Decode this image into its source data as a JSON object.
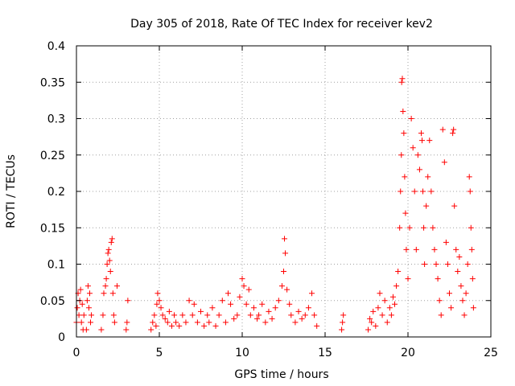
{
  "chart_data": {
    "type": "scatter",
    "title": "Day 305 of 2018, Rate Of TEC Index for receiver kev2",
    "xlabel": "GPS time / hours",
    "ylabel": "ROTI / TECUs",
    "xlim": [
      0,
      25
    ],
    "ylim": [
      0,
      0.4
    ],
    "xticks": [
      "0",
      "5",
      "10",
      "15",
      "20",
      "25"
    ],
    "yticks": [
      "0",
      "0.05",
      "0.1",
      "0.15",
      "0.2",
      "0.25",
      "0.3",
      "0.35",
      "0.4"
    ],
    "grid": true,
    "marker": "+",
    "color": "#ff0000",
    "series": [
      {
        "name": "ROTI",
        "points": [
          [
            0.0,
            0.02
          ],
          [
            0.05,
            0.04
          ],
          [
            0.1,
            0.06
          ],
          [
            0.15,
            0.03
          ],
          [
            0.2,
            0.05
          ],
          [
            0.25,
            0.065
          ],
          [
            0.3,
            0.02
          ],
          [
            0.35,
            0.045
          ],
          [
            0.4,
            0.01
          ],
          [
            0.45,
            0.03
          ],
          [
            0.6,
            0.01
          ],
          [
            0.65,
            0.05
          ],
          [
            0.7,
            0.07
          ],
          [
            0.75,
            0.04
          ],
          [
            0.8,
            0.06
          ],
          [
            0.85,
            0.02
          ],
          [
            0.9,
            0.03
          ],
          [
            1.5,
            0.01
          ],
          [
            1.6,
            0.03
          ],
          [
            1.65,
            0.06
          ],
          [
            1.75,
            0.07
          ],
          [
            1.8,
            0.08
          ],
          [
            1.85,
            0.1
          ],
          [
            1.9,
            0.115
          ],
          [
            1.95,
            0.12
          ],
          [
            2.0,
            0.105
          ],
          [
            2.05,
            0.09
          ],
          [
            2.1,
            0.13
          ],
          [
            2.15,
            0.135
          ],
          [
            2.2,
            0.06
          ],
          [
            2.25,
            0.03
          ],
          [
            2.3,
            0.02
          ],
          [
            2.45,
            0.07
          ],
          [
            3.0,
            0.01
          ],
          [
            3.05,
            0.02
          ],
          [
            3.1,
            0.05
          ],
          [
            4.5,
            0.01
          ],
          [
            4.6,
            0.02
          ],
          [
            4.7,
            0.03
          ],
          [
            4.8,
            0.015
          ],
          [
            4.85,
            0.045
          ],
          [
            4.9,
            0.06
          ],
          [
            5.0,
            0.05
          ],
          [
            5.1,
            0.04
          ],
          [
            5.2,
            0.03
          ],
          [
            5.35,
            0.025
          ],
          [
            5.5,
            0.02
          ],
          [
            5.6,
            0.035
          ],
          [
            5.75,
            0.015
          ],
          [
            5.9,
            0.03
          ],
          [
            6.0,
            0.02
          ],
          [
            6.2,
            0.015
          ],
          [
            6.4,
            0.03
          ],
          [
            6.6,
            0.02
          ],
          [
            6.8,
            0.05
          ],
          [
            7.0,
            0.03
          ],
          [
            7.1,
            0.045
          ],
          [
            7.3,
            0.02
          ],
          [
            7.5,
            0.035
          ],
          [
            7.7,
            0.015
          ],
          [
            7.9,
            0.03
          ],
          [
            8.0,
            0.02
          ],
          [
            8.2,
            0.04
          ],
          [
            8.4,
            0.015
          ],
          [
            8.6,
            0.03
          ],
          [
            8.8,
            0.05
          ],
          [
            9.0,
            0.02
          ],
          [
            9.15,
            0.06
          ],
          [
            9.3,
            0.045
          ],
          [
            9.5,
            0.025
          ],
          [
            9.7,
            0.03
          ],
          [
            9.85,
            0.055
          ],
          [
            10.0,
            0.08
          ],
          [
            10.1,
            0.07
          ],
          [
            10.25,
            0.045
          ],
          [
            10.4,
            0.065
          ],
          [
            10.5,
            0.03
          ],
          [
            10.7,
            0.04
          ],
          [
            10.9,
            0.025
          ],
          [
            11.0,
            0.03
          ],
          [
            11.2,
            0.045
          ],
          [
            11.4,
            0.02
          ],
          [
            11.6,
            0.035
          ],
          [
            11.8,
            0.025
          ],
          [
            12.0,
            0.04
          ],
          [
            12.2,
            0.05
          ],
          [
            12.4,
            0.07
          ],
          [
            12.5,
            0.09
          ],
          [
            12.55,
            0.135
          ],
          [
            12.6,
            0.115
          ],
          [
            12.7,
            0.065
          ],
          [
            12.85,
            0.045
          ],
          [
            12.95,
            0.03
          ],
          [
            13.2,
            0.02
          ],
          [
            13.4,
            0.035
          ],
          [
            13.6,
            0.025
          ],
          [
            13.8,
            0.03
          ],
          [
            14.0,
            0.04
          ],
          [
            14.2,
            0.06
          ],
          [
            14.35,
            0.03
          ],
          [
            14.5,
            0.015
          ],
          [
            16.0,
            0.01
          ],
          [
            16.05,
            0.02
          ],
          [
            16.1,
            0.03
          ],
          [
            17.6,
            0.01
          ],
          [
            17.7,
            0.025
          ],
          [
            17.8,
            0.02
          ],
          [
            17.9,
            0.035
          ],
          [
            18.05,
            0.015
          ],
          [
            18.2,
            0.04
          ],
          [
            18.3,
            0.06
          ],
          [
            18.45,
            0.03
          ],
          [
            18.6,
            0.05
          ],
          [
            18.75,
            0.02
          ],
          [
            18.9,
            0.04
          ],
          [
            19.0,
            0.03
          ],
          [
            19.1,
            0.055
          ],
          [
            19.2,
            0.045
          ],
          [
            19.3,
            0.07
          ],
          [
            19.4,
            0.09
          ],
          [
            19.5,
            0.15
          ],
          [
            19.55,
            0.2
          ],
          [
            19.6,
            0.25
          ],
          [
            19.62,
            0.35
          ],
          [
            19.66,
            0.355
          ],
          [
            19.7,
            0.31
          ],
          [
            19.75,
            0.28
          ],
          [
            19.8,
            0.22
          ],
          [
            19.85,
            0.17
          ],
          [
            19.9,
            0.12
          ],
          [
            20.0,
            0.08
          ],
          [
            20.1,
            0.15
          ],
          [
            20.2,
            0.3
          ],
          [
            20.3,
            0.26
          ],
          [
            20.4,
            0.2
          ],
          [
            20.5,
            0.12
          ],
          [
            20.6,
            0.25
          ],
          [
            20.7,
            0.23
          ],
          [
            20.8,
            0.28
          ],
          [
            20.85,
            0.27
          ],
          [
            20.9,
            0.2
          ],
          [
            20.95,
            0.15
          ],
          [
            21.0,
            0.1
          ],
          [
            21.1,
            0.18
          ],
          [
            21.2,
            0.22
          ],
          [
            21.3,
            0.27
          ],
          [
            21.4,
            0.2
          ],
          [
            21.5,
            0.15
          ],
          [
            21.6,
            0.12
          ],
          [
            21.7,
            0.1
          ],
          [
            21.8,
            0.08
          ],
          [
            21.9,
            0.05
          ],
          [
            22.0,
            0.03
          ],
          [
            22.1,
            0.285
          ],
          [
            22.2,
            0.24
          ],
          [
            22.3,
            0.13
          ],
          [
            22.4,
            0.1
          ],
          [
            22.5,
            0.06
          ],
          [
            22.6,
            0.04
          ],
          [
            22.7,
            0.28
          ],
          [
            22.75,
            0.285
          ],
          [
            22.8,
            0.18
          ],
          [
            22.9,
            0.12
          ],
          [
            23.0,
            0.09
          ],
          [
            23.1,
            0.11
          ],
          [
            23.2,
            0.07
          ],
          [
            23.3,
            0.05
          ],
          [
            23.4,
            0.03
          ],
          [
            23.5,
            0.06
          ],
          [
            23.6,
            0.1
          ],
          [
            23.7,
            0.22
          ],
          [
            23.75,
            0.2
          ],
          [
            23.8,
            0.15
          ],
          [
            23.85,
            0.12
          ],
          [
            23.9,
            0.08
          ],
          [
            23.95,
            0.04
          ]
        ]
      }
    ]
  }
}
